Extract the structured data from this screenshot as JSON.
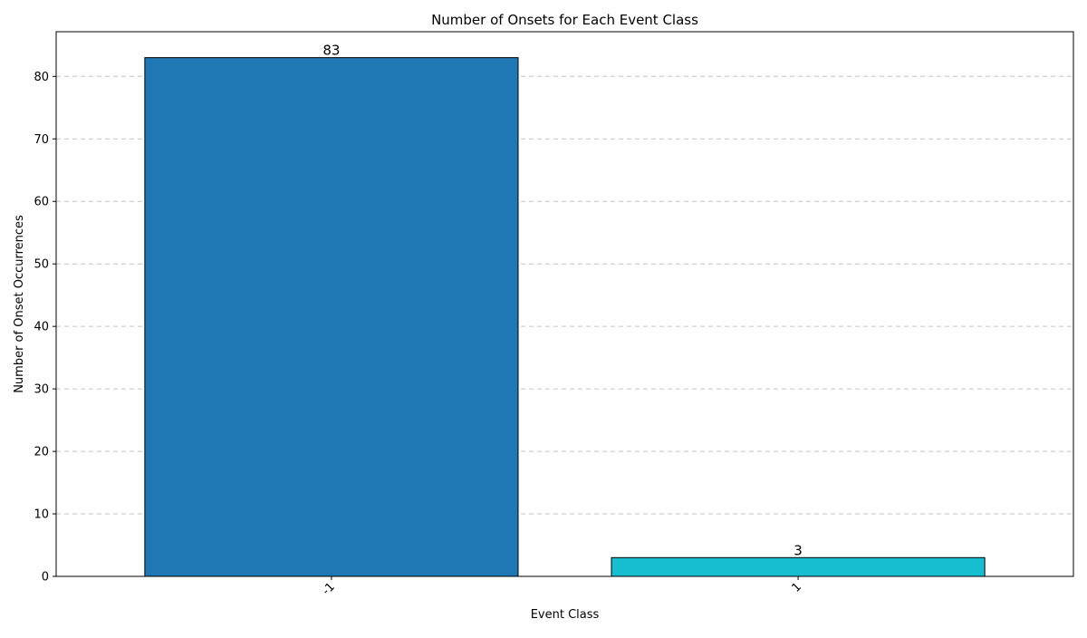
{
  "chart_data": {
    "type": "bar",
    "title": "Number of Onsets for Each Event Class",
    "xlabel": "Event Class",
    "ylabel": "Number of Onset Occurrences",
    "categories": [
      "-1",
      "1"
    ],
    "values": [
      83,
      3
    ],
    "data_labels": [
      "83",
      "3"
    ],
    "bar_colors": [
      "#1f77b4",
      "#17becf"
    ],
    "bar_edge_color": "#000000",
    "ylim": [
      0,
      87.15
    ],
    "yticks": [
      0,
      10,
      20,
      30,
      40,
      50,
      60,
      70,
      80
    ],
    "ytick_labels": [
      "0",
      "10",
      "20",
      "30",
      "40",
      "50",
      "60",
      "70",
      "80"
    ],
    "grid": "y-dashed",
    "legend": "none"
  }
}
